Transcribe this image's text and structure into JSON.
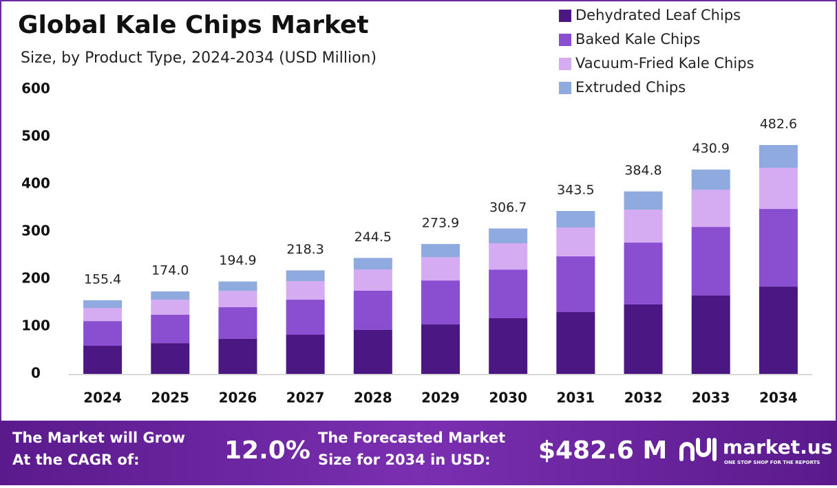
{
  "chart_data": {
    "type": "stacked_bar",
    "title": "Global Kale Chips Market",
    "subtitle": "Size, by Product Type, 2024-2034 (USD Million)",
    "categories": [
      "2024",
      "2025",
      "2026",
      "2027",
      "2028",
      "2029",
      "2030",
      "2031",
      "2032",
      "2033",
      "2034"
    ],
    "series": [
      {
        "name": "Dehydrated Leaf Chips",
        "color": "#4b1782",
        "values": [
          59.4,
          65,
          74,
          82.6,
          92.8,
          104.3,
          117.4,
          130.4,
          146.4,
          165.2,
          184
        ]
      },
      {
        "name": "Baked Kale Chips",
        "color": "#8a4fd1",
        "values": [
          52,
          60,
          66.6,
          73.9,
          82.6,
          92.7,
          102.6,
          117.4,
          130.4,
          144.8,
          163.8
        ]
      },
      {
        "name": "Vacuum-Fried Kale Chips",
        "color": "#d5abf1",
        "values": [
          27.6,
          31.5,
          34.4,
          39.1,
          44.6,
          49,
          55.4,
          60.9,
          69.6,
          78.4,
          87
        ]
      },
      {
        "name": "Extruded Chips",
        "color": "#8faadf",
        "values": [
          16.4,
          17.5,
          19.9,
          22.7,
          24.5,
          27.9,
          31.3,
          34.8,
          38.4,
          42.5,
          47.8
        ]
      }
    ],
    "totals": [
      155.4,
      174,
      194.9,
      218.3,
      244.5,
      273.9,
      306.7,
      343.5,
      384.8,
      430.9,
      482.6
    ],
    "totals_labels": [
      "155.4",
      "174.0",
      "194.9",
      "218.3",
      "244.5",
      "273.9",
      "306.7",
      "343.5",
      "384.8",
      "430.9",
      "482.6"
    ],
    "ylim": [
      0,
      600
    ],
    "yticks": [
      0,
      100,
      200,
      300,
      400,
      500,
      600
    ],
    "legend": "top-right"
  },
  "footer": {
    "cagr_text": [
      "The Market will Grow",
      "At the CAGR of:"
    ],
    "cagr": "12.0%",
    "forecast_text": [
      "The Forecasted Market",
      "Size for 2034 in USD:"
    ],
    "forecast": "$482.6 M",
    "brand": "market.us",
    "tagline": "ONE STOP SHOP FOR THE REPORTS"
  }
}
